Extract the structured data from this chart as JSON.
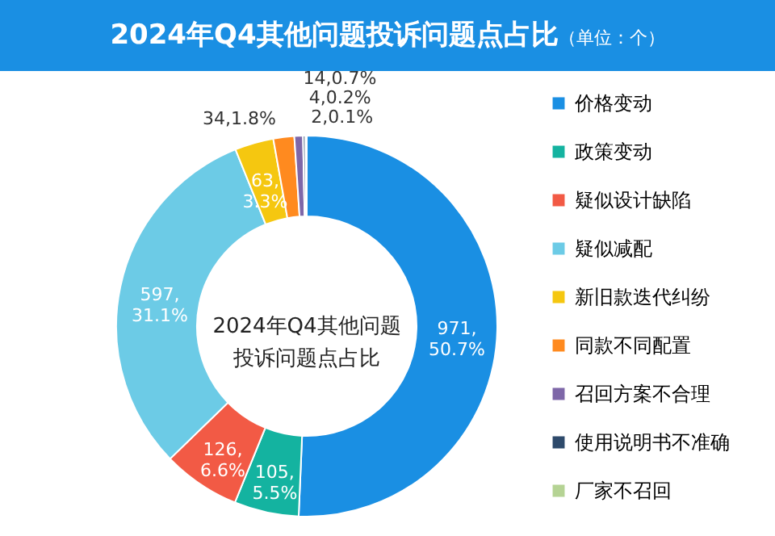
{
  "chart_data": {
    "type": "donut",
    "title": "2024年Q4其他问题投诉问题点占比",
    "subtitle": "（单位：个）",
    "categories": [
      "价格变动",
      "政策变动",
      "疑似设计缺陷",
      "疑似减配",
      "新旧款迭代纠纷",
      "同款不同配置",
      "召回方案不合理",
      "使用说明书不准确",
      "厂家不召回"
    ],
    "values": [
      971,
      105,
      126,
      597,
      63,
      34,
      14,
      4,
      2
    ],
    "colors": [
      "#1a8fe3",
      "#14b3a0",
      "#f25a45",
      "#6ccbe6",
      "#f5c710",
      "#ff8a1f",
      "#7e67a8",
      "#2e4a6b",
      "#b5d394"
    ],
    "value_labels": [
      "971,\n50.7%",
      "105,\n5.5%",
      "126,\n6.6%",
      "597,\n31.1%",
      "63,\n3.3%",
      "34,1.8%",
      "14,0.7%",
      "4,0.2%",
      "2,0.1%"
    ],
    "annotations": [
      "2024年Q4其他问题投诉问题点占比"
    ],
    "legend": "right"
  }
}
